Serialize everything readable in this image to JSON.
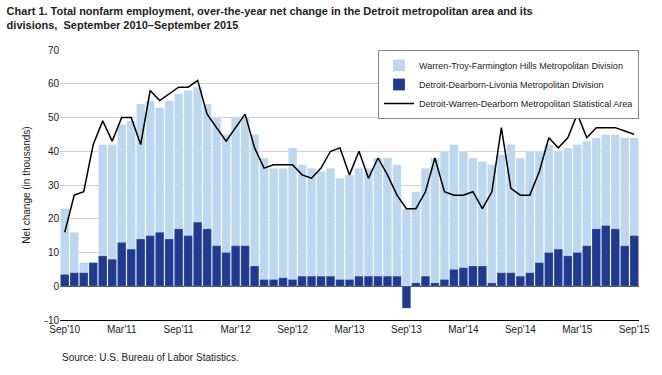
{
  "chart_data": {
    "type": "bar",
    "title": "Chart 1. Total nonfarm employment, over-the-year net change in the Detroit metropolitan area and its\ndivisions,  September 2010–September 2015",
    "ylabel": "Net change (in thousands)",
    "source": "Source: U.S. Bureau of Labor Statistics.",
    "categories": [
      "Sep'10",
      null,
      null,
      null,
      null,
      null,
      "Mar'11",
      null,
      null,
      null,
      null,
      null,
      "Sep'11",
      null,
      null,
      null,
      null,
      null,
      "Mar'12",
      null,
      null,
      null,
      null,
      null,
      "Sep'12",
      null,
      null,
      null,
      null,
      null,
      "Mar'13",
      null,
      null,
      null,
      null,
      null,
      "Sep'13",
      null,
      null,
      null,
      null,
      null,
      "Mar'14",
      null,
      null,
      null,
      null,
      null,
      "Sep'14",
      null,
      null,
      null,
      null,
      null,
      "Mar'15",
      null,
      null,
      null,
      null,
      null,
      "Sep'15"
    ],
    "series": [
      {
        "name": "Warren-Troy-Farmington Hills Metropolitan Division",
        "type": "bar",
        "color": "#BDD7EE",
        "values": [
          23.0,
          16.0,
          7.0,
          7.0,
          42.0,
          42.0,
          48.0,
          49.0,
          54.0,
          55.0,
          53.0,
          55.0,
          57.0,
          58.0,
          59.0,
          54.0,
          50.0,
          45.0,
          50.0,
          50.0,
          45.0,
          38.0,
          35.0,
          35.0,
          41.0,
          36.0,
          35.0,
          34.0,
          35.0,
          32.0,
          33.0,
          35.0,
          35.0,
          38.0,
          38.0,
          36.0,
          23.0,
          28.0,
          35.0,
          38.0,
          40.0,
          42.0,
          40.0,
          38.0,
          37.0,
          36.0,
          39.0,
          42.0,
          38.0,
          40.0,
          40.0,
          42.0,
          40.0,
          41.0,
          42.0,
          43.0,
          44.0,
          45.0,
          45.0,
          44.0,
          44.0
        ]
      },
      {
        "name": "Detroit-Dearborn-Livonia Metropolitan Division",
        "type": "bar",
        "color": "#1F3A8F",
        "values": [
          3.5,
          4.0,
          4.0,
          7.0,
          9.0,
          8.0,
          13.0,
          11.0,
          14.0,
          15.0,
          16.0,
          14.0,
          17.0,
          15.0,
          19.0,
          17.0,
          12.0,
          10.0,
          12.0,
          12.0,
          6.0,
          2.0,
          2.0,
          2.5,
          2.0,
          3.0,
          3.0,
          3.0,
          3.0,
          2.0,
          2.0,
          3.0,
          3.0,
          3.0,
          3.0,
          3.0,
          -6.5,
          1.0,
          3.0,
          1.0,
          2.0,
          5.0,
          5.5,
          6.0,
          6.0,
          1.0,
          4.0,
          4.0,
          3.0,
          4.0,
          7.0,
          10.0,
          11.0,
          9.0,
          10.0,
          12.0,
          17.0,
          18.0,
          17.0,
          12.0,
          15.0
        ]
      },
      {
        "name": "Detroit-Warren-Dearborn Metropolitan Statistical Area",
        "type": "line",
        "color": "#000000",
        "values": [
          16.0,
          27.0,
          28.0,
          42.0,
          49.0,
          43.0,
          50.0,
          50.0,
          42.0,
          58.0,
          55.0,
          57.0,
          59.0,
          59.0,
          61.0,
          51.0,
          47.0,
          43.0,
          47.0,
          51.0,
          41.0,
          35.0,
          36.0,
          36.0,
          36.0,
          33.0,
          32.0,
          35.0,
          40.0,
          41.0,
          33.0,
          40.0,
          32.0,
          38.0,
          33.0,
          27.0,
          23.0,
          23.0,
          28.0,
          38.0,
          28.0,
          27.0,
          27.0,
          28.0,
          23.0,
          28.0,
          47.0,
          29.0,
          27.0,
          27.0,
          34.0,
          44.0,
          41.0,
          44.0,
          51.0,
          44.0,
          47.0,
          47.0,
          47.0,
          46.0,
          45.0
        ]
      }
    ],
    "stacked": false,
    "ylim": [
      -10,
      70
    ],
    "yticks": [
      -10,
      0,
      10,
      20,
      30,
      40,
      50,
      60,
      70
    ],
    "grid": true,
    "legend": "upper right"
  }
}
